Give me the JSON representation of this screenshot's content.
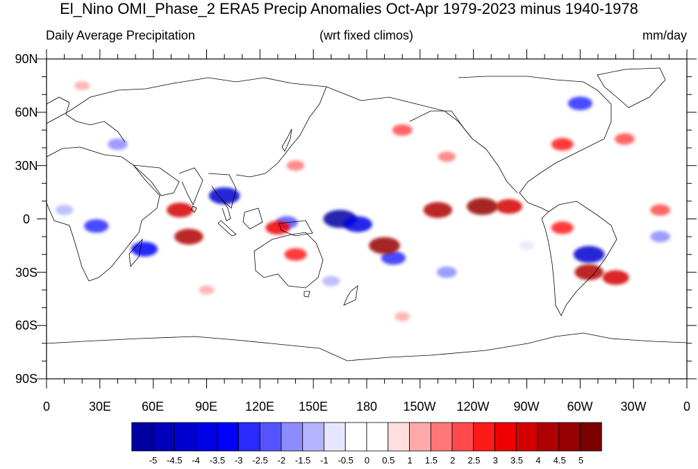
{
  "figure": {
    "title": "El_Nino OMI_Phase_2 ERA5 Precip Anomalies Oct-Apr 1979-2023 minus 1940-1978",
    "subtitle_left": "Daily Average Precipitation",
    "subtitle_center": "(wrt fixed climos)",
    "subtitle_right": "mm/day"
  },
  "map": {
    "lat_ticks": [
      "90N",
      "60N",
      "30N",
      "0",
      "30S",
      "60S",
      "90S"
    ],
    "lon_ticks": [
      "0",
      "30E",
      "60E",
      "90E",
      "120E",
      "150E",
      "180",
      "150W",
      "120W",
      "90W",
      "60W",
      "30W",
      "0"
    ],
    "projection": "cylindrical equidistant",
    "anomaly_patches": [
      {
        "lon": 100,
        "lat": 13,
        "value": -4.5
      },
      {
        "lon": 165,
        "lat": 0,
        "value": -5
      },
      {
        "lon": 175,
        "lat": -3,
        "value": -4
      },
      {
        "lon": 28,
        "lat": -4,
        "value": -3
      },
      {
        "lon": 55,
        "lat": -17,
        "value": -3.5
      },
      {
        "lon": 135,
        "lat": -2,
        "value": -2.5
      },
      {
        "lon": 195,
        "lat": -22,
        "value": -3
      },
      {
        "lon": 225,
        "lat": -30,
        "value": -2
      },
      {
        "lon": 305,
        "lat": -20,
        "value": -4.5
      },
      {
        "lon": 345,
        "lat": -10,
        "value": -2
      },
      {
        "lon": 300,
        "lat": 65,
        "value": -3
      },
      {
        "lon": 40,
        "lat": 42,
        "value": -2
      },
      {
        "lon": 80,
        "lat": -10,
        "value": 4
      },
      {
        "lon": 75,
        "lat": 5,
        "value": 3.5
      },
      {
        "lon": 130,
        "lat": -5,
        "value": 3
      },
      {
        "lon": 140,
        "lat": -20,
        "value": 2.5
      },
      {
        "lon": 190,
        "lat": -15,
        "value": 4.5
      },
      {
        "lon": 220,
        "lat": 5,
        "value": 4
      },
      {
        "lon": 245,
        "lat": 7,
        "value": 4.5
      },
      {
        "lon": 260,
        "lat": 7,
        "value": 3.5
      },
      {
        "lon": 290,
        "lat": -5,
        "value": 2.5
      },
      {
        "lon": 305,
        "lat": -30,
        "value": 4
      },
      {
        "lon": 320,
        "lat": -33,
        "value": 3.5
      },
      {
        "lon": 200,
        "lat": 50,
        "value": 2
      },
      {
        "lon": 290,
        "lat": 42,
        "value": 2.5
      },
      {
        "lon": 325,
        "lat": 45,
        "value": 2
      },
      {
        "lon": 345,
        "lat": 5,
        "value": 2
      },
      {
        "lon": 140,
        "lat": 30,
        "value": 1.5
      },
      {
        "lon": 225,
        "lat": 35,
        "value": 1.5
      },
      {
        "lon": 90,
        "lat": -40,
        "value": 1
      },
      {
        "lon": 200,
        "lat": -55,
        "value": 1
      },
      {
        "lon": 10,
        "lat": 5,
        "value": -1.5
      },
      {
        "lon": 160,
        "lat": -35,
        "value": -1.5
      },
      {
        "lon": 270,
        "lat": -15,
        "value": -1
      },
      {
        "lon": 20,
        "lat": 75,
        "value": 1
      }
    ]
  },
  "colorbar": {
    "labels": [
      "-5",
      "-4.5",
      "-4",
      "-3.5",
      "-3",
      "-2.5",
      "-2",
      "-1.5",
      "-1",
      "-0.5",
      "0",
      "0.5",
      "1",
      "1.5",
      "2",
      "2.5",
      "3",
      "3.5",
      "4",
      "4.5",
      "5"
    ],
    "colors": [
      "#0000a0",
      "#0000b8",
      "#0000d0",
      "#0000e6",
      "#0000ff",
      "#2a2aff",
      "#5454ff",
      "#8c8cff",
      "#b4b4ff",
      "#e6e6ff",
      "#ffffff",
      "#ffffff",
      "#ffdede",
      "#ffaaaa",
      "#ff7777",
      "#ff4a4a",
      "#ff1a1a",
      "#f00000",
      "#d40000",
      "#b00000",
      "#960000",
      "#7c0000"
    ]
  }
}
